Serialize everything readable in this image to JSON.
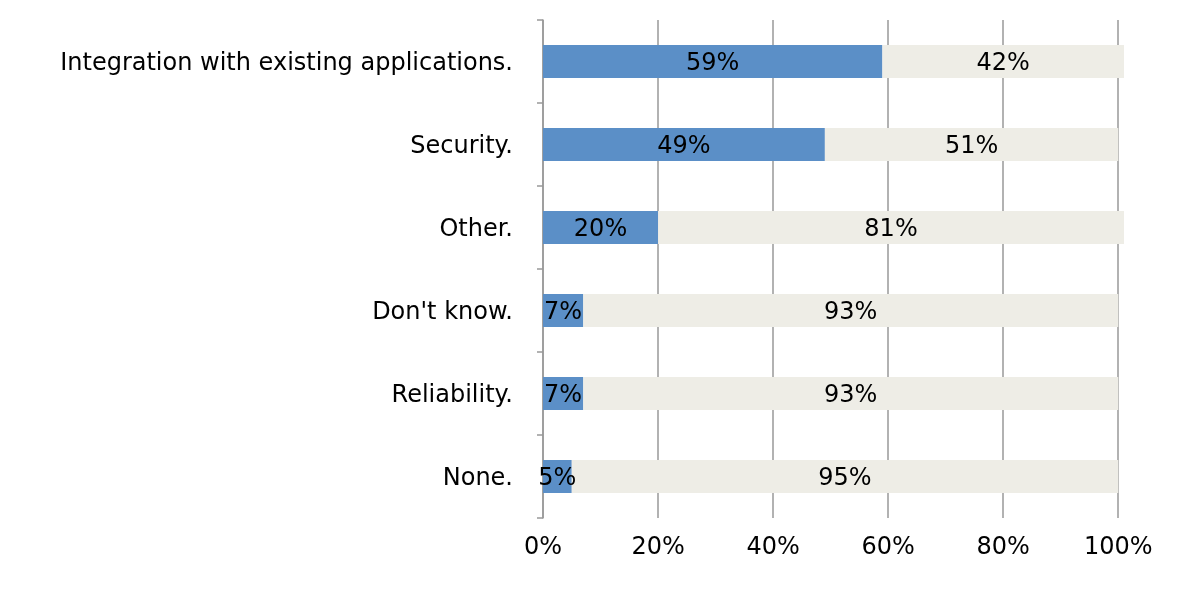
{
  "chart_data": {
    "type": "bar",
    "orientation": "horizontal",
    "stacked": true,
    "categories": [
      "Integration with existing applications.",
      "Security.",
      "Other.",
      "Don't know.",
      "Reliability.",
      "None."
    ],
    "series": [
      {
        "color": "#5b8fc7",
        "values": [
          59,
          49,
          20,
          7,
          7,
          5
        ],
        "value_labels": [
          "59%",
          "49%",
          "20%",
          "7%",
          "7%",
          "5%"
        ]
      },
      {
        "color": "#eeede6",
        "values": [
          42,
          51,
          81,
          93,
          93,
          95
        ],
        "value_labels": [
          "42%",
          "51%",
          "81%",
          "93%",
          "93%",
          "95%"
        ]
      }
    ],
    "xlim": [
      0,
      101
    ],
    "xticks": [
      {
        "value": 0,
        "label": "0%"
      },
      {
        "value": 20,
        "label": "20%"
      },
      {
        "value": 40,
        "label": "40%"
      },
      {
        "value": 60,
        "label": "60%"
      },
      {
        "value": 80,
        "label": "80%"
      },
      {
        "value": 100,
        "label": "100%"
      }
    ],
    "grid": "x"
  }
}
